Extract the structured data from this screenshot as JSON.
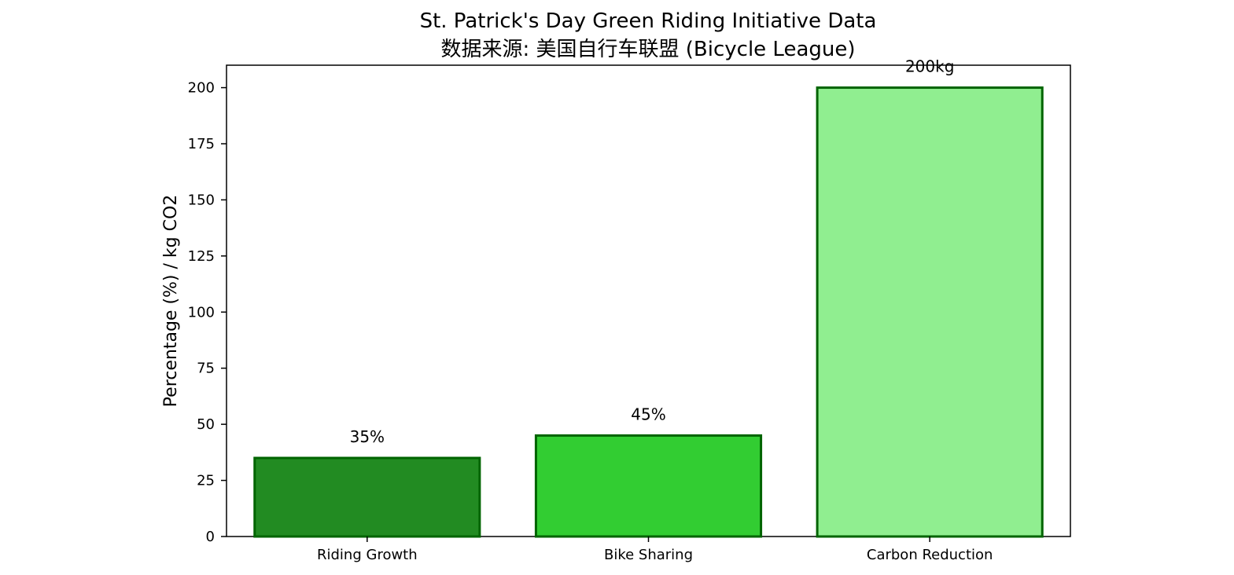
{
  "chart_data": {
    "type": "bar",
    "title": "St. Patrick's Day Green Riding Initiative Data",
    "subtitle": "数据来源: 美国自行车联盟 (Bicycle League)",
    "xlabel": "",
    "ylabel": "Percentage (%) / kg CO2",
    "categories": [
      "Riding Growth",
      "Bike Sharing",
      "Carbon Reduction"
    ],
    "values": [
      35,
      45,
      200
    ],
    "data_labels": [
      "35%",
      "45%",
      "200kg"
    ],
    "bar_colors": [
      "#228b22",
      "#32cd32",
      "#90ee90"
    ],
    "edge_color": "#006400",
    "ylim": [
      0,
      210
    ],
    "yticks": [
      0,
      25,
      50,
      75,
      100,
      125,
      150,
      175,
      200
    ],
    "grid": false,
    "legend": "none"
  }
}
